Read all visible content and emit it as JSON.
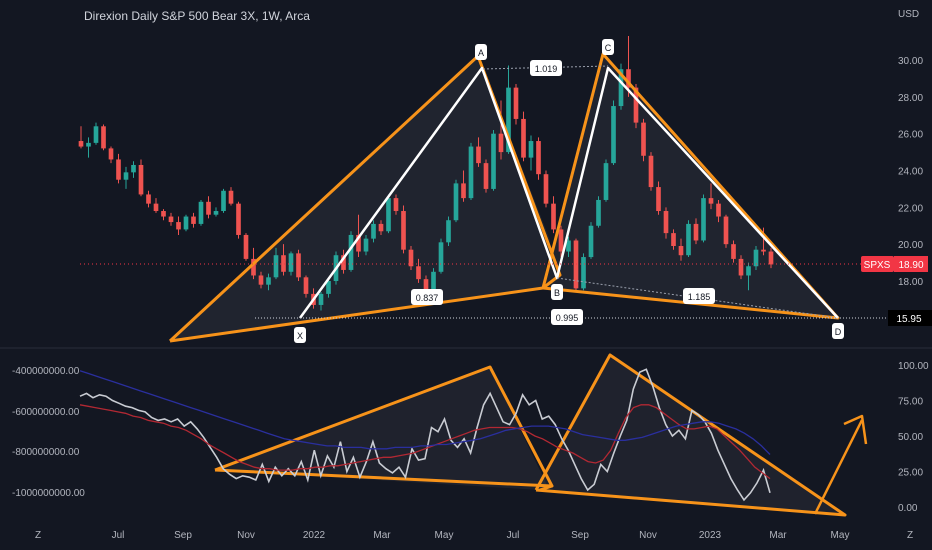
{
  "header": {
    "title": "Direxion Daily S&P 500 Bear 3X, 1W, Arca",
    "currency": "USD"
  },
  "corner": {
    "z_left": "Z",
    "z_right": "Z"
  },
  "colors": {
    "background": "#131722",
    "pattern_orange": "#f7931a",
    "leg_white": "#ffffff",
    "candle_up": "#26a69a",
    "candle_down": "#ef5350",
    "price_tag": "#f23645",
    "oscillator_white": "#c9ccd3",
    "oscillator_red": "#b22833",
    "oscillator_blue": "#2a2f9e"
  },
  "chart_data": [
    {
      "type": "candlestick",
      "title": "Direxion Daily S&P 500 Bear 3X, 1W, Arca",
      "ylabel": "USD",
      "x_ticks": [
        "Jul",
        "Sep",
        "Nov",
        "2022",
        "Mar",
        "May",
        "Jul",
        "Sep",
        "Nov",
        "2023",
        "Mar",
        "May"
      ],
      "y_ticks": [
        "30.00",
        "28.00",
        "26.00",
        "24.00",
        "22.00",
        "20.00",
        "18.00"
      ],
      "ylim": [
        15.5,
        32
      ],
      "last_price": {
        "symbol": "SPXS",
        "value": "18.90"
      },
      "support_level": {
        "value": "15.95"
      },
      "harmonic_pattern": {
        "points": [
          {
            "label": "X",
            "x": "2021-12",
            "y": 16.0
          },
          {
            "label": "A",
            "x": "2022-06",
            "y": 29.7
          },
          {
            "label": "B",
            "x": "2022-08",
            "y": 17.2
          },
          {
            "label": "C",
            "x": "2022-10",
            "y": 30.0
          },
          {
            "label": "D",
            "x": "2023-05",
            "y": 15.95
          }
        ],
        "ratios": [
          "0.837",
          "1.019",
          "0.995",
          "1.185"
        ]
      },
      "candles_ohlc": [
        [
          25.6,
          26.4,
          25.2,
          25.3
        ],
        [
          25.3,
          25.8,
          24.7,
          25.5
        ],
        [
          25.5,
          26.6,
          25.4,
          26.4
        ],
        [
          26.4,
          26.5,
          25.1,
          25.2
        ],
        [
          25.2,
          25.3,
          24.4,
          24.6
        ],
        [
          24.6,
          24.9,
          23.3,
          23.5
        ],
        [
          23.5,
          24.2,
          23.0,
          23.9
        ],
        [
          23.9,
          24.5,
          23.6,
          24.3
        ],
        [
          24.3,
          24.6,
          22.6,
          22.7
        ],
        [
          22.7,
          22.9,
          22.0,
          22.2
        ],
        [
          22.2,
          22.5,
          21.7,
          21.8
        ],
        [
          21.8,
          21.9,
          21.3,
          21.5
        ],
        [
          21.5,
          21.7,
          21.0,
          21.2
        ],
        [
          21.2,
          21.5,
          20.5,
          20.8
        ],
        [
          20.8,
          21.6,
          20.7,
          21.5
        ],
        [
          21.5,
          21.7,
          20.9,
          21.1
        ],
        [
          21.1,
          22.4,
          21.0,
          22.3
        ],
        [
          22.3,
          22.6,
          21.4,
          21.6
        ],
        [
          21.6,
          22.0,
          21.5,
          21.8
        ],
        [
          21.8,
          23.0,
          21.7,
          22.9
        ],
        [
          22.9,
          23.1,
          22.1,
          22.2
        ],
        [
          22.2,
          22.3,
          20.3,
          20.5
        ],
        [
          20.5,
          20.6,
          19.1,
          19.2
        ],
        [
          19.2,
          19.8,
          18.1,
          18.3
        ],
        [
          18.3,
          18.5,
          17.6,
          17.8
        ],
        [
          17.8,
          18.4,
          17.5,
          18.2
        ],
        [
          18.2,
          19.8,
          18.1,
          19.4
        ],
        [
          19.4,
          20.0,
          18.3,
          18.5
        ],
        [
          18.5,
          19.6,
          18.3,
          19.5
        ],
        [
          19.5,
          19.7,
          18.0,
          18.2
        ],
        [
          18.2,
          18.3,
          17.1,
          17.3
        ],
        [
          17.3,
          17.6,
          16.5,
          16.7
        ],
        [
          16.7,
          17.4,
          16.4,
          17.3
        ],
        [
          17.3,
          18.2,
          17.1,
          18.0
        ],
        [
          18.0,
          19.6,
          17.8,
          19.4
        ],
        [
          19.4,
          19.7,
          18.4,
          18.6
        ],
        [
          18.6,
          20.7,
          18.5,
          20.5
        ],
        [
          20.5,
          21.6,
          19.3,
          19.6
        ],
        [
          19.6,
          20.5,
          19.4,
          20.3
        ],
        [
          20.3,
          21.3,
          20.1,
          21.1
        ],
        [
          21.1,
          21.3,
          20.5,
          20.7
        ],
        [
          20.7,
          22.7,
          20.6,
          22.5
        ],
        [
          22.5,
          22.7,
          21.6,
          21.8
        ],
        [
          21.8,
          22.1,
          19.5,
          19.7
        ],
        [
          19.7,
          19.9,
          18.6,
          18.8
        ],
        [
          18.8,
          19.2,
          17.9,
          18.1
        ],
        [
          18.1,
          18.3,
          17.2,
          17.4
        ],
        [
          17.4,
          18.7,
          17.3,
          18.5
        ],
        [
          18.5,
          20.3,
          18.4,
          20.1
        ],
        [
          20.1,
          21.5,
          19.9,
          21.3
        ],
        [
          21.3,
          23.5,
          21.2,
          23.3
        ],
        [
          23.3,
          24.0,
          22.3,
          22.5
        ],
        [
          22.5,
          25.5,
          22.4,
          25.3
        ],
        [
          25.3,
          25.8,
          24.2,
          24.4
        ],
        [
          24.4,
          24.6,
          22.8,
          23.0
        ],
        [
          23.0,
          26.2,
          22.9,
          26.0
        ],
        [
          26.0,
          27.8,
          24.6,
          25.0
        ],
        [
          25.0,
          29.7,
          24.9,
          28.5
        ],
        [
          28.5,
          28.7,
          26.5,
          26.8
        ],
        [
          26.8,
          27.2,
          24.5,
          24.7
        ],
        [
          24.7,
          25.9,
          24.0,
          25.6
        ],
        [
          25.6,
          25.8,
          23.5,
          23.8
        ],
        [
          23.8,
          24.0,
          22.0,
          22.2
        ],
        [
          22.2,
          22.6,
          20.6,
          20.8
        ],
        [
          20.8,
          21.0,
          19.3,
          19.6
        ],
        [
          19.6,
          20.4,
          19.3,
          20.2
        ],
        [
          20.2,
          20.3,
          17.4,
          17.6
        ],
        [
          17.6,
          19.5,
          17.5,
          19.3
        ],
        [
          19.3,
          21.2,
          19.2,
          21.0
        ],
        [
          21.0,
          22.6,
          20.9,
          22.4
        ],
        [
          22.4,
          24.6,
          22.3,
          24.4
        ],
        [
          24.4,
          27.8,
          24.3,
          27.5
        ],
        [
          27.5,
          29.8,
          27.3,
          29.5
        ],
        [
          29.5,
          31.3,
          28.0,
          28.5
        ],
        [
          28.5,
          28.7,
          26.3,
          26.6
        ],
        [
          26.6,
          26.8,
          24.5,
          24.8
        ],
        [
          24.8,
          25.0,
          22.9,
          23.1
        ],
        [
          23.1,
          23.4,
          21.6,
          21.8
        ],
        [
          21.8,
          22.0,
          20.3,
          20.6
        ],
        [
          20.6,
          20.8,
          19.7,
          19.9
        ],
        [
          19.9,
          20.3,
          19.1,
          19.4
        ],
        [
          19.4,
          21.3,
          19.3,
          21.1
        ],
        [
          21.1,
          21.4,
          20.0,
          20.2
        ],
        [
          20.2,
          22.7,
          20.1,
          22.5
        ],
        [
          22.5,
          23.3,
          21.9,
          22.2
        ],
        [
          22.2,
          22.4,
          21.2,
          21.5
        ],
        [
          21.5,
          21.6,
          19.8,
          20.0
        ],
        [
          20.0,
          20.2,
          19.0,
          19.2
        ],
        [
          19.2,
          19.4,
          18.1,
          18.3
        ],
        [
          18.3,
          19.0,
          17.5,
          18.8
        ],
        [
          18.8,
          19.9,
          18.6,
          19.7
        ],
        [
          19.7,
          20.9,
          19.4,
          19.6
        ],
        [
          19.6,
          19.8,
          18.7,
          18.9
        ]
      ]
    },
    {
      "type": "line",
      "left_y_ticks": [
        "-400000000.00",
        "-600000000.00",
        "-800000000.00",
        "-1000000000.00"
      ],
      "right_y_ticks": [
        "100.00",
        "75.00",
        "50.00",
        "25.00",
        "0.00"
      ],
      "ylim_right": [
        -3,
        102
      ],
      "series": [
        {
          "color_key": "oscillator_white",
          "values": [
            78,
            80,
            77,
            79,
            78,
            75,
            73,
            71,
            70,
            68,
            67,
            63,
            61,
            62,
            60,
            62,
            57,
            60,
            55,
            49,
            42,
            35,
            27,
            23,
            20,
            22,
            21,
            19,
            30,
            18,
            28,
            22,
            27,
            22,
            32,
            19,
            40,
            22,
            36,
            28,
            46,
            25,
            35,
            21,
            32,
            46,
            31,
            27,
            24,
            28,
            21,
            41,
            33,
            34,
            56,
            53,
            62,
            47,
            42,
            48,
            38,
            56,
            72,
            80,
            70,
            60,
            58,
            66,
            79,
            72,
            75,
            62,
            64,
            58,
            48,
            40,
            30,
            20,
            12,
            16,
            30,
            25,
            38,
            50,
            61,
            83,
            95,
            97,
            85,
            70,
            58,
            50,
            54,
            48,
            68,
            65,
            60,
            52,
            40,
            30,
            20,
            12,
            5,
            10,
            17,
            26,
            10
          ]
        },
        {
          "color_key": "oscillator_red",
          "values": [
            72,
            71,
            70,
            69,
            68,
            67,
            66,
            64,
            63,
            61,
            60,
            59,
            57,
            56,
            54,
            51,
            48,
            44,
            41,
            38,
            35,
            32,
            30,
            28,
            27,
            27,
            26,
            26,
            26,
            27,
            27,
            28,
            28,
            29,
            29,
            30,
            31,
            32,
            33,
            34,
            35,
            35,
            36,
            37,
            38,
            40,
            42,
            44,
            46,
            48,
            50,
            52,
            54,
            55,
            56,
            56,
            56,
            56,
            55,
            53,
            50,
            48,
            45,
            42,
            40,
            38,
            35,
            32,
            31,
            33,
            40,
            52,
            63,
            70,
            72,
            72,
            70,
            66,
            62,
            58,
            55,
            55,
            56,
            57,
            55,
            50,
            45,
            40,
            34,
            28,
            24,
            20
          ]
        },
        {
          "color_key": "oscillator_blue",
          "values": [
            96,
            94,
            92,
            90,
            88,
            86,
            84,
            82,
            80,
            78,
            76,
            74,
            72,
            70,
            68,
            66,
            64,
            62,
            60,
            58,
            56,
            54,
            52,
            50,
            48,
            47,
            46,
            45,
            44,
            43,
            43,
            42,
            42,
            42,
            41,
            41,
            41,
            42,
            42,
            42,
            43,
            43,
            44,
            44,
            45,
            46,
            47,
            48,
            50,
            52,
            54,
            55,
            56,
            57,
            57,
            57,
            56,
            55,
            53,
            51,
            50,
            49,
            48,
            47,
            47,
            48,
            49,
            51,
            53,
            55,
            57,
            58,
            59,
            60,
            60,
            59,
            57,
            55,
            52,
            48,
            43,
            37
          ]
        }
      ],
      "pattern_lines": "orange triangle outlines mirroring the harmonic pattern with an upward arrow"
    }
  ]
}
